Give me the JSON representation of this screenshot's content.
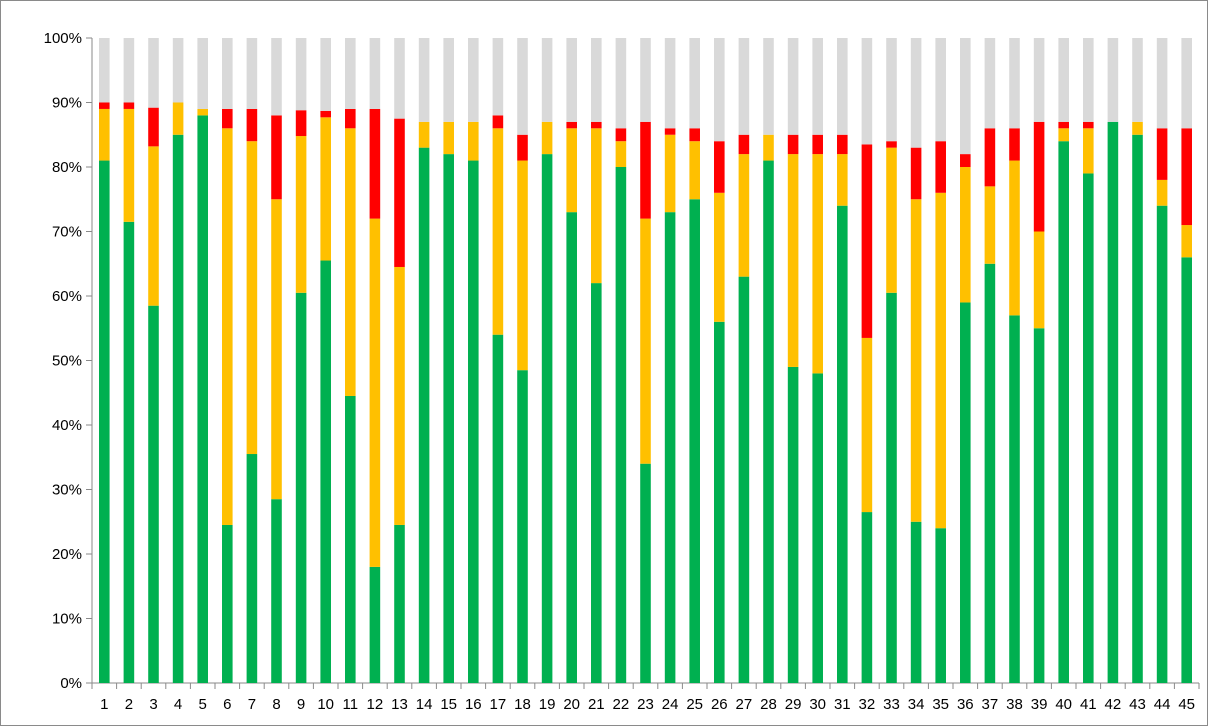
{
  "chart_data": {
    "type": "bar",
    "stacked": true,
    "title": "",
    "xlabel": "",
    "ylabel": "",
    "ylim": [
      0,
      100
    ],
    "yticks": [
      "0%",
      "10%",
      "20%",
      "30%",
      "40%",
      "50%",
      "60%",
      "70%",
      "80%",
      "90%",
      "100%"
    ],
    "grid": false,
    "legend": "none",
    "categories": [
      "1",
      "2",
      "3",
      "4",
      "5",
      "6",
      "7",
      "8",
      "9",
      "10",
      "11",
      "12",
      "13",
      "14",
      "15",
      "16",
      "17",
      "18",
      "19",
      "20",
      "21",
      "22",
      "23",
      "24",
      "25",
      "26",
      "27",
      "28",
      "29",
      "30",
      "31",
      "32",
      "33",
      "34",
      "35",
      "36",
      "37",
      "38",
      "39",
      "40",
      "41",
      "42",
      "43",
      "44",
      "45"
    ],
    "series": [
      {
        "color": "#00b050",
        "values": [
          81,
          71.5,
          58.5,
          85,
          88,
          24.5,
          35.5,
          28.5,
          60.5,
          65.5,
          44.5,
          18,
          24.5,
          83,
          82,
          81,
          54,
          48.5,
          82,
          73,
          62,
          80,
          34,
          73,
          75,
          56,
          63,
          81,
          49,
          48,
          74,
          26.5,
          60.5,
          25,
          24,
          59,
          65,
          57,
          55,
          84,
          79,
          87,
          85,
          74,
          66
        ]
      },
      {
        "color": "#ffc000",
        "values": [
          8,
          17.5,
          24.7,
          5,
          1,
          61.5,
          48.5,
          46.5,
          24.3,
          22.2,
          41.5,
          54,
          40,
          4,
          5,
          6,
          32,
          32.5,
          5,
          13,
          24,
          4,
          38,
          12,
          9,
          20,
          19,
          4,
          33,
          34,
          8,
          27,
          22.5,
          50,
          52,
          21,
          12,
          24,
          15,
          2,
          7,
          0,
          2,
          4,
          5
        ]
      },
      {
        "color": "#ff0000",
        "values": [
          1,
          1,
          6,
          0,
          0,
          3,
          5,
          13,
          4,
          1,
          3,
          17,
          23,
          0,
          0,
          0,
          2,
          4,
          0,
          1,
          1,
          2,
          15,
          1,
          2,
          8,
          3,
          0,
          3,
          3,
          3,
          30,
          1,
          8,
          8,
          2,
          9,
          5,
          17,
          1,
          1,
          0,
          0,
          8,
          15
        ]
      },
      {
        "color": "#d9d9d9",
        "values": [
          10,
          10,
          10.8,
          10,
          11,
          11,
          11,
          12,
          11.2,
          11.3,
          11,
          11,
          12.5,
          13,
          13,
          13,
          12,
          15,
          13,
          13,
          13,
          14,
          13,
          14,
          14,
          16,
          15,
          15,
          15,
          15,
          15,
          16.5,
          16,
          17,
          16,
          18,
          14,
          14,
          13,
          13,
          13,
          13,
          13,
          14,
          14
        ]
      }
    ]
  }
}
